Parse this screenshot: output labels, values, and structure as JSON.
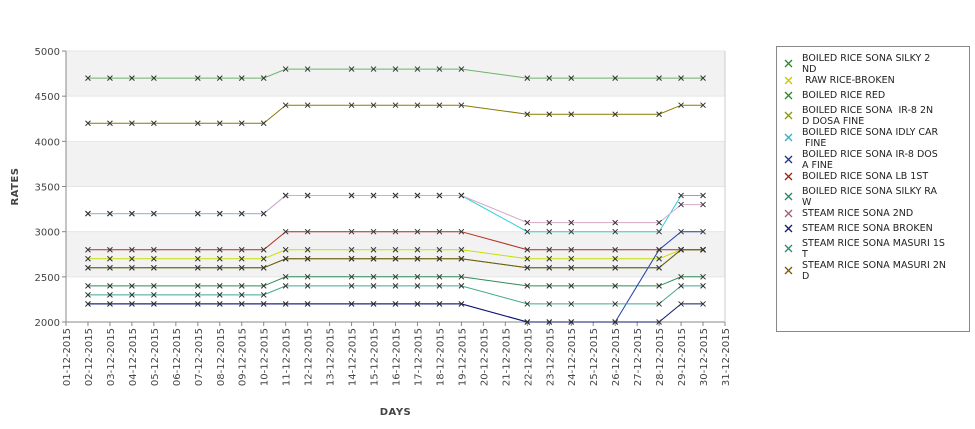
{
  "chart_data": {
    "type": "line",
    "title": "",
    "xlabel": "DAYS",
    "ylabel": "RATES",
    "ylim": [
      2000,
      5000
    ],
    "yticks": [
      2000,
      2500,
      3000,
      3500,
      4000,
      4500,
      5000
    ],
    "xlim": [
      "01-12-2015",
      "31-12-2015"
    ],
    "x_tick_labels": [
      "01-12-2015",
      "02-12-2015",
      "03-12-2015",
      "04-12-2015",
      "05-12-2015",
      "06-12-2015",
      "07-12-2015",
      "08-12-2015",
      "09-12-2015",
      "10-12-2015",
      "11-12-2015",
      "12-12-2015",
      "13-12-2015",
      "14-12-2015",
      "15-12-2015",
      "16-12-2015",
      "17-12-2015",
      "18-12-2015",
      "19-12-2015",
      "20-12-2015",
      "21-12-2015",
      "22-12-2015",
      "23-12-2015",
      "24-12-2015",
      "25-12-2015",
      "26-12-2015",
      "27-12-2015",
      "28-12-2015",
      "29-12-2015",
      "30-12-2015",
      "31-12-2015"
    ],
    "x": [
      "02-12-2015",
      "03-12-2015",
      "04-12-2015",
      "05-12-2015",
      "07-12-2015",
      "08-12-2015",
      "09-12-2015",
      "10-12-2015",
      "11-12-2015",
      "12-12-2015",
      "14-12-2015",
      "15-12-2015",
      "16-12-2015",
      "17-12-2015",
      "18-12-2015",
      "19-12-2015",
      "22-12-2015",
      "23-12-2015",
      "24-12-2015",
      "26-12-2015",
      "28-12-2015",
      "29-12-2015",
      "30-12-2015"
    ],
    "legend_position": "right",
    "grid": "alternating horizontal bands",
    "series": [
      {
        "name": "BOILED RICE SONA SILKY 2ND",
        "color": "#6db36d",
        "values": [
          4700,
          4700,
          4700,
          4700,
          4700,
          4700,
          4700,
          4700,
          4800,
          4800,
          4800,
          4800,
          4800,
          4800,
          4800,
          4800,
          4700,
          4700,
          4700,
          4700,
          4700,
          4700,
          4700
        ]
      },
      {
        "name": " RAW RICE-BROKEN",
        "color": "#8a7a00",
        "values": [
          4200,
          4200,
          4200,
          4200,
          4200,
          4200,
          4200,
          4200,
          4400,
          4400,
          4400,
          4400,
          4400,
          4400,
          4400,
          4400,
          4300,
          4300,
          4300,
          4300,
          4300,
          4400,
          4400
        ]
      },
      {
        "name": "BOILED RICE RED",
        "color": "#2e8b57",
        "values": [
          2400,
          2400,
          2400,
          2400,
          2400,
          2400,
          2400,
          2400,
          2500,
          2500,
          2500,
          2500,
          2500,
          2500,
          2500,
          2500,
          2400,
          2400,
          2400,
          2400,
          2400,
          2500,
          2500
        ]
      },
      {
        "name": "BOILED RICE SONA  IR-8 2ND DOSA FINE",
        "color": "#c8e000",
        "values": [
          2700,
          2700,
          2700,
          2700,
          2700,
          2700,
          2700,
          2700,
          2800,
          2800,
          2800,
          2800,
          2800,
          2800,
          2800,
          2800,
          2700,
          2700,
          2700,
          2700,
          2700,
          2800,
          2800
        ]
      },
      {
        "name": "BOILED RICE SONA IDLY CAR FINE",
        "color": "#30d0d8",
        "values": [
          3200,
          3200,
          3200,
          3200,
          3200,
          3200,
          3200,
          3200,
          3400,
          3400,
          3400,
          3400,
          3400,
          3400,
          3400,
          3400,
          3000,
          3000,
          3000,
          3000,
          3000,
          3400,
          3400
        ]
      },
      {
        "name": "BOILED RICE SONA IR-8 DOSA FINE",
        "color": "#2040b0",
        "values": [
          2200,
          2200,
          2200,
          2200,
          2200,
          2200,
          2200,
          2200,
          2200,
          2200,
          2200,
          2200,
          2200,
          2200,
          2200,
          2200,
          2000,
          2000,
          2000,
          2000,
          2800,
          3000,
          3000
        ]
      },
      {
        "name": "BOILED RICE SONA LB 1ST",
        "color": "#b03020",
        "values": [
          2800,
          2800,
          2800,
          2800,
          2800,
          2800,
          2800,
          2800,
          3000,
          3000,
          3000,
          3000,
          3000,
          3000,
          3000,
          3000,
          2800,
          2800,
          2800,
          2800,
          2800,
          2800,
          2800
        ]
      },
      {
        "name": "BOILED RICE SONA SILKY RAW",
        "color": "#40a890",
        "values": [
          2300,
          2300,
          2300,
          2300,
          2300,
          2300,
          2300,
          2300,
          2400,
          2400,
          2400,
          2400,
          2400,
          2400,
          2400,
          2400,
          2200,
          2200,
          2200,
          2200,
          2200,
          2400,
          2400
        ]
      },
      {
        "name": "STEAM RICE SONA 2ND",
        "color": "#d8a8c8",
        "values": [
          3200,
          3200,
          3200,
          3200,
          3200,
          3200,
          3200,
          3200,
          3400,
          3400,
          3400,
          3400,
          3400,
          3400,
          3400,
          3400,
          3100,
          3100,
          3100,
          3100,
          3100,
          3300,
          3300
        ]
      },
      {
        "name": "STEAM RICE SONA BROKEN",
        "color": "#101870",
        "values": [
          2200,
          2200,
          2200,
          2200,
          2200,
          2200,
          2200,
          2200,
          2200,
          2200,
          2200,
          2200,
          2200,
          2200,
          2200,
          2200,
          2000,
          2000,
          2000,
          2000,
          2000,
          2200,
          2200
        ]
      },
      {
        "name": "STEAM RICE SONA MASURI 1ST",
        "color": "#3a9a7a",
        "values": [
          2600,
          2600,
          2600,
          2600,
          2600,
          2600,
          2600,
          2600,
          2700,
          2700,
          2700,
          2700,
          2700,
          2700,
          2700,
          2700,
          2600,
          2600,
          2600,
          2600,
          2600,
          2800,
          2800
        ]
      },
      {
        "name": "STEAM RICE SONA MASURI 2ND",
        "color": "#7a5a00",
        "values": [
          2600,
          2600,
          2600,
          2600,
          2600,
          2600,
          2600,
          2600,
          2700,
          2700,
          2700,
          2700,
          2700,
          2700,
          2700,
          2700,
          2600,
          2600,
          2600,
          2600,
          2600,
          2800,
          2800
        ]
      }
    ],
    "legend_labels": [
      [
        "BOILED RICE SONA SILKY 2",
        "ND"
      ],
      [
        " RAW RICE-BROKEN"
      ],
      [
        "BOILED RICE RED"
      ],
      [
        "BOILED RICE SONA  IR-8 2N",
        "D DOSA FINE"
      ],
      [
        "BOILED RICE SONA IDLY CAR",
        " FINE"
      ],
      [
        "BOILED RICE SONA IR-8 DOS",
        "A FINE"
      ],
      [
        "BOILED RICE SONA LB 1ST"
      ],
      [
        "BOILED RICE SONA SILKY RA",
        "W"
      ],
      [
        "STEAM RICE SONA 2ND"
      ],
      [
        "STEAM RICE SONA BROKEN"
      ],
      [
        "STEAM RICE SONA MASURI 1S",
        "T"
      ],
      [
        "STEAM RICE SONA MASURI 2N",
        "D"
      ]
    ],
    "legend_marker_colors": [
      "#2a8a2a",
      "#c8c800",
      "#2a8a2a",
      "#8a9a00",
      "#30b0c0",
      "#203090",
      "#a02010",
      "#208a60",
      "#a06070",
      "#101870",
      "#2a8a6a",
      "#7a5a00"
    ]
  }
}
